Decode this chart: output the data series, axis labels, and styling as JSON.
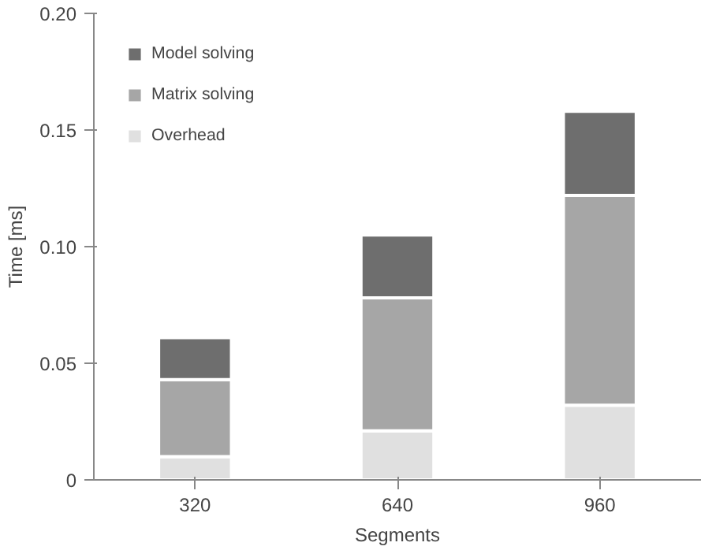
{
  "chart_data": {
    "type": "bar",
    "stacked": true,
    "xlabel": "Segments",
    "ylabel": "Time [ms]",
    "categories": [
      "320",
      "640",
      "960"
    ],
    "series": [
      {
        "name": "Overhead",
        "color": "#e0e0e0",
        "values": [
          0.01,
          0.021,
          0.032
        ]
      },
      {
        "name": "Matrix solving",
        "color": "#a6a6a6",
        "values": [
          0.033,
          0.057,
          0.09
        ]
      },
      {
        "name": "Model solving",
        "color": "#6e6e6e",
        "values": [
          0.018,
          0.027,
          0.036
        ]
      }
    ],
    "ylim": [
      0,
      0.2
    ],
    "yticks": [
      {
        "value": 0,
        "label": "0"
      },
      {
        "value": 0.05,
        "label": "0.05"
      },
      {
        "value": 0.1,
        "label": "0.10"
      },
      {
        "value": 0.15,
        "label": "0.15"
      },
      {
        "value": 0.2,
        "label": "0.20"
      }
    ],
    "grid": false,
    "legend": "top left"
  }
}
